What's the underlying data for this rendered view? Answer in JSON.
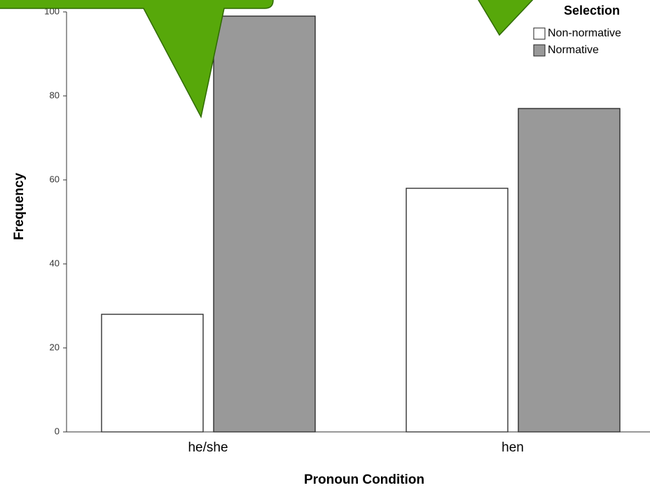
{
  "chart_data": {
    "type": "bar",
    "categories": [
      "he/she",
      "hen"
    ],
    "series": [
      {
        "name": "Non-normative",
        "color": "#ffffff",
        "values": [
          28,
          58
        ]
      },
      {
        "name": "Normative",
        "color": "#999999",
        "values": [
          99,
          77
        ]
      }
    ],
    "ylim": [
      0,
      100
    ],
    "yticks": [
      0,
      20,
      40,
      60,
      80,
      100
    ],
    "y_label": "Frequency",
    "x_label": "Pronoun Condition",
    "legend_title": "Selection",
    "legend_position": "top-right",
    "grid": false
  }
}
